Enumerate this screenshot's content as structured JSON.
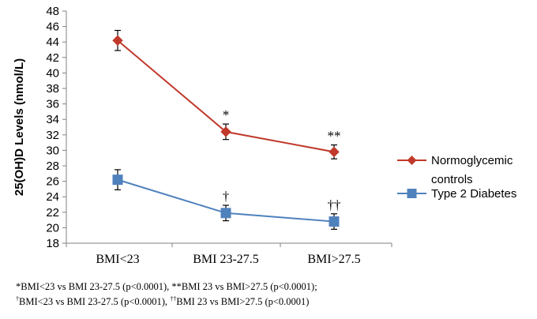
{
  "chart_data": {
    "type": "line",
    "ylabel": "25(OH)D Levels (nmol/L)",
    "ylim": [
      18,
      48
    ],
    "ytick_step": 2,
    "categories": [
      "BMI<23",
      "BMI 23-27.5",
      "BMI>27.5"
    ],
    "series": [
      {
        "name": "Normoglycemic controls",
        "legend_lines": [
          "Normoglycemic",
          "controls"
        ],
        "color": "#c0392b",
        "marker": "diamond",
        "values": [
          44.2,
          32.4,
          29.8
        ],
        "errors": [
          1.3,
          1.0,
          0.9
        ],
        "annotations": [
          "",
          "*",
          "**"
        ]
      },
      {
        "name": "Type 2 Diabetes",
        "legend_lines": [
          "Type 2 Diabetes"
        ],
        "color": "#4f81bd",
        "marker": "square",
        "values": [
          26.2,
          21.9,
          20.8
        ],
        "errors": [
          1.3,
          1.0,
          1.0
        ],
        "annotations": [
          "",
          "†",
          "††"
        ]
      }
    ],
    "legend_position": "right"
  },
  "footnotes": {
    "line1": "*BMI<23 vs BMI 23-27.5 (p<0.0001), **BMI 23 vs BMI>27.5 (p<0.0001);",
    "line2_sup1": "†",
    "line2_text1": "BMI<23 vs BMI 23-27.5 (p<0.0001), ",
    "line2_sup2": "††",
    "line2_text2": "BMI 23 vs BMI>27.5 (p<0.0001)"
  }
}
